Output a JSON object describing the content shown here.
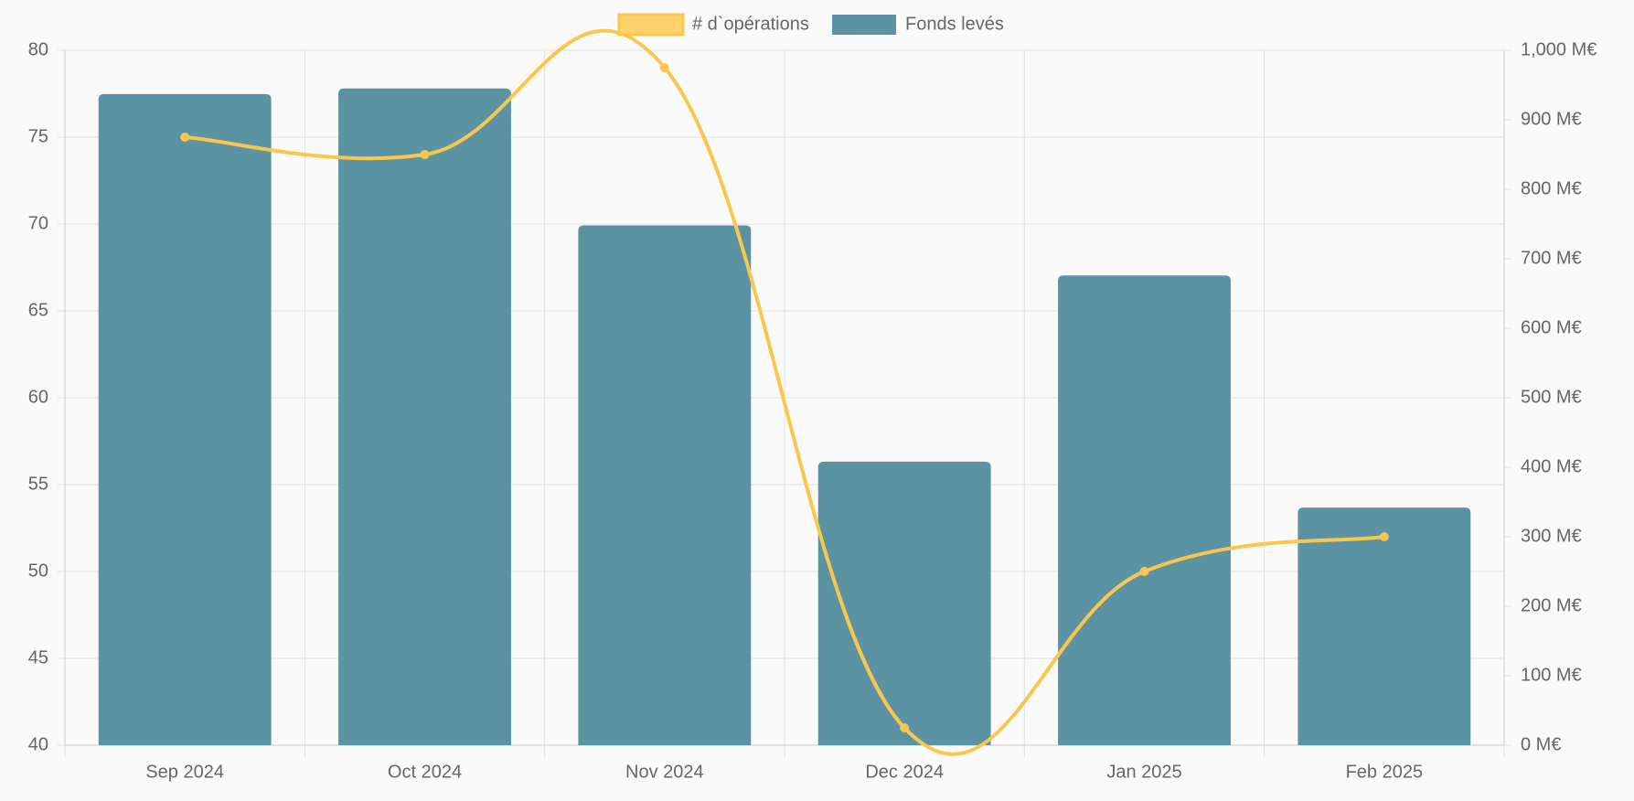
{
  "chart_data": {
    "type": "bar-line",
    "categories": [
      "Sep 2024",
      "Oct 2024",
      "Nov 2024",
      "Dec 2024",
      "Jan 2025",
      "Feb 2025"
    ],
    "series": [
      {
        "name": "# d`opérations",
        "type": "line",
        "color": "#f9c74f",
        "fill": "#ffd36b",
        "axis": "y",
        "values": [
          75,
          74,
          79,
          41,
          50,
          52
        ]
      },
      {
        "name": "Fonds levés",
        "type": "bar",
        "color": "#5c93a2",
        "axis": "y2",
        "values": [
          937,
          945,
          748,
          408,
          676,
          342
        ]
      }
    ],
    "ylim": [
      40,
      80
    ],
    "yticks": [
      40,
      45,
      50,
      55,
      60,
      65,
      70,
      75,
      80
    ],
    "y2lim": [
      0,
      1000
    ],
    "y2ticks": [
      {
        "value": 0,
        "label": "0 M€"
      },
      {
        "value": 100,
        "label": "100 M€"
      },
      {
        "value": 200,
        "label": "200 M€"
      },
      {
        "value": 300,
        "label": "300 M€"
      },
      {
        "value": 400,
        "label": "400 M€"
      },
      {
        "value": 500,
        "label": "500 M€"
      },
      {
        "value": 600,
        "label": "600 M€"
      },
      {
        "value": 700,
        "label": "700 M€"
      },
      {
        "value": 800,
        "label": "800 M€"
      },
      {
        "value": 900,
        "label": "900 M€"
      },
      {
        "value": 1000,
        "label": "1,000 M€"
      }
    ],
    "grid": true,
    "legend": "top"
  }
}
